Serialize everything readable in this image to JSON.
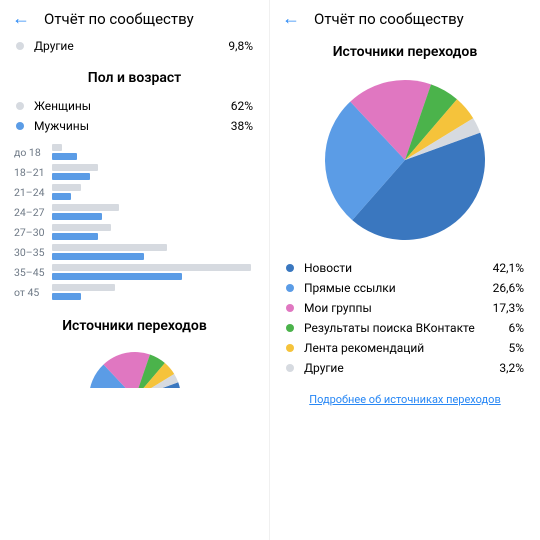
{
  "header": {
    "back_icon": "←",
    "title": "Отчёт по сообществу"
  },
  "others_row": {
    "label": "Другие",
    "value": "9,8%",
    "color": "#d6dae0"
  },
  "gender_age_title": "Пол и возраст",
  "gender": [
    {
      "label": "Женщины",
      "value": "62%",
      "color": "#d6dae0"
    },
    {
      "label": "Мужчины",
      "value": "38%",
      "color": "#5b9ce6"
    }
  ],
  "age_groups": [
    {
      "label": "до 18",
      "f": 5,
      "m": 12
    },
    {
      "label": "18–21",
      "f": 22,
      "m": 18
    },
    {
      "label": "21–24",
      "f": 14,
      "m": 9
    },
    {
      "label": "24–27",
      "f": 32,
      "m": 24
    },
    {
      "label": "27–30",
      "f": 28,
      "m": 22
    },
    {
      "label": "30–35",
      "f": 55,
      "m": 44
    },
    {
      "label": "35–45",
      "f": 95,
      "m": 62
    },
    {
      "label": "от 45",
      "f": 30,
      "m": 14
    }
  ],
  "age_bar_colors": {
    "f": "#d6dae0",
    "m": "#5b9ce6"
  },
  "age_bar_max_width_pct": 95,
  "sources_title": "Источники переходов",
  "pie": {
    "slices": [
      {
        "label": "Новости",
        "value": 42.1,
        "color": "#3a77bf"
      },
      {
        "label": "Прямые ссылки",
        "value": 26.6,
        "color": "#5b9ce6"
      },
      {
        "label": "Мои группы",
        "value": 17.3,
        "color": "#e077c1"
      },
      {
        "label": "Результаты поиска ВКонтакте",
        "value": 6,
        "color": "#4bb34b"
      },
      {
        "label": "Лента рекомендаций",
        "value": 5,
        "color": "#f5c33b"
      },
      {
        "label": "Другие",
        "value": 3.2,
        "color": "#d6dae0"
      }
    ],
    "start_angle_deg": -20
  },
  "sources_list": [
    {
      "label": "Новости",
      "value": "42,1%",
      "color": "#3a77bf"
    },
    {
      "label": "Прямые ссылки",
      "value": "26,6%",
      "color": "#5b9ce6"
    },
    {
      "label": "Мои группы",
      "value": "17,3%",
      "color": "#e077c1"
    },
    {
      "label": "Результаты поиска ВКонтакте",
      "value": "6%",
      "color": "#4bb34b"
    },
    {
      "label": "Лента рекомендаций",
      "value": "5%",
      "color": "#f5c33b"
    },
    {
      "label": "Другие",
      "value": "3,2%",
      "color": "#d6dae0"
    }
  ],
  "details_link": "Подробнее об источниках переходов"
}
